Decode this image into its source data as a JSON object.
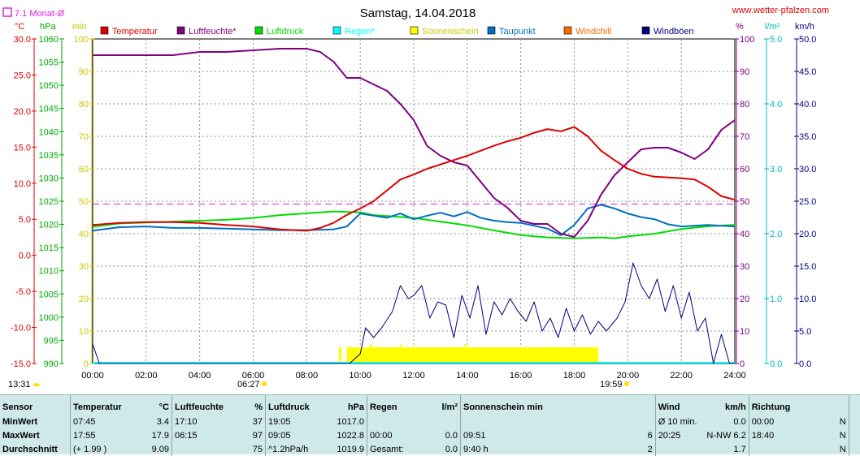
{
  "chart_data": {
    "type": "line",
    "title": "Samstag, 14.04.2018",
    "source": "www.wetter-pfalzen.com",
    "monthly_avg_label": "7.1 Monat-Ø",
    "x_ticks": [
      "00:00",
      "02:00",
      "04:00",
      "06:00",
      "08:00",
      "10:00",
      "12:00",
      "14:00",
      "16:00",
      "18:00",
      "20:00",
      "22:00",
      "24:00"
    ],
    "sunrise": "06:27",
    "sunset": "19:59",
    "daylength": "13:31",
    "axes": {
      "temp": {
        "unit": "°C",
        "ylim": [
          -15,
          30
        ],
        "ticks": [
          "30.0",
          "25.0",
          "20.0",
          "15.0",
          "10.0",
          "5.0",
          "0.0",
          "-5.0",
          "-10.0",
          "-15.0"
        ]
      },
      "pres": {
        "unit": "hPa",
        "ylim": [
          990,
          1060
        ],
        "ticks": [
          "1060",
          "1055",
          "1050",
          "1045",
          "1040",
          "1035",
          "1030",
          "1025",
          "1020",
          "1015",
          "1010",
          "1005",
          "1000",
          "995",
          "990"
        ]
      },
      "sun": {
        "unit": "min",
        "ylim": [
          0,
          100
        ],
        "ticks": [
          "100",
          "90",
          "80",
          "70",
          "60",
          "50",
          "40",
          "30",
          "20",
          "10",
          "0"
        ]
      },
      "hum": {
        "unit": "%",
        "ylim": [
          0,
          100
        ],
        "ticks": [
          "100",
          "90",
          "80",
          "70",
          "60",
          "50",
          "40",
          "30",
          "20",
          "10",
          "0"
        ]
      },
      "rain": {
        "unit": "l/m²",
        "ylim": [
          0,
          5
        ],
        "ticks": [
          "5.0",
          "4.0",
          "3.0",
          "2.0",
          "1.0",
          "0.0"
        ]
      },
      "wind": {
        "unit": "km/h",
        "ylim": [
          0,
          50
        ],
        "ticks": [
          "50.0",
          "45.0",
          "40.0",
          "35.0",
          "30.0",
          "25.0",
          "20.0",
          "15.0",
          "10.0",
          "5.0",
          "0.0"
        ]
      }
    },
    "monthly_avg_value": 7.1,
    "legend": [
      {
        "name": "Temperatur",
        "color": "#dd0000"
      },
      {
        "name": "Luftfeuchte*",
        "color": "#800080"
      },
      {
        "name": "Luftdruck",
        "color": "#00dd00"
      },
      {
        "name": "Regen*",
        "color": "#00ffff"
      },
      {
        "name": "Sonnenschein",
        "color": "#ffff00"
      },
      {
        "name": "Taupunkt",
        "color": "#0070c0"
      },
      {
        "name": "Windchill",
        "color": "#ff6600"
      },
      {
        "name": "Windböen",
        "color": "#000080"
      }
    ],
    "series": [
      {
        "name": "Temperatur",
        "axis": "temp",
        "color": "#dd0000",
        "points": [
          [
            0,
            4.2
          ],
          [
            1,
            4.5
          ],
          [
            2,
            4.6
          ],
          [
            3,
            4.6
          ],
          [
            4,
            4.5
          ],
          [
            5,
            4.2
          ],
          [
            6,
            4.0
          ],
          [
            7,
            3.6
          ],
          [
            8,
            3.4
          ],
          [
            8.5,
            3.8
          ],
          [
            9,
            4.5
          ],
          [
            9.5,
            5.6
          ],
          [
            10,
            6.5
          ],
          [
            10.5,
            7.5
          ],
          [
            11,
            9.0
          ],
          [
            11.5,
            10.5
          ],
          [
            12,
            11.2
          ],
          [
            12.5,
            12.0
          ],
          [
            13,
            12.6
          ],
          [
            13.5,
            13.2
          ],
          [
            14,
            13.8
          ],
          [
            14.5,
            14.5
          ],
          [
            15,
            15.2
          ],
          [
            15.5,
            15.8
          ],
          [
            16,
            16.3
          ],
          [
            16.5,
            17.0
          ],
          [
            17,
            17.5
          ],
          [
            17.5,
            17.2
          ],
          [
            18,
            17.8
          ],
          [
            18.5,
            16.5
          ],
          [
            19,
            14.5
          ],
          [
            19.5,
            13.2
          ],
          [
            20,
            12.0
          ],
          [
            20.5,
            11.3
          ],
          [
            21,
            10.9
          ],
          [
            22,
            10.7
          ],
          [
            22.5,
            10.5
          ],
          [
            23,
            9.5
          ],
          [
            23.5,
            8.2
          ],
          [
            24,
            7.7
          ]
        ]
      },
      {
        "name": "Luftfeuchte*",
        "axis": "hum",
        "color": "#800080",
        "points": [
          [
            0,
            95
          ],
          [
            1,
            95
          ],
          [
            2,
            95
          ],
          [
            3,
            95
          ],
          [
            3.5,
            95.5
          ],
          [
            4,
            96
          ],
          [
            5,
            96
          ],
          [
            6,
            96.5
          ],
          [
            7,
            97
          ],
          [
            8,
            97
          ],
          [
            8.5,
            96
          ],
          [
            9,
            93
          ],
          [
            9.5,
            88
          ],
          [
            10,
            88
          ],
          [
            10.5,
            86
          ],
          [
            11,
            84
          ],
          [
            11.5,
            80
          ],
          [
            12,
            75
          ],
          [
            12.5,
            67
          ],
          [
            13,
            64
          ],
          [
            13.5,
            62
          ],
          [
            14,
            61
          ],
          [
            14.5,
            56
          ],
          [
            15,
            51
          ],
          [
            15.5,
            48
          ],
          [
            16,
            44
          ],
          [
            16.5,
            43
          ],
          [
            17,
            43
          ],
          [
            17.5,
            40
          ],
          [
            18,
            39
          ],
          [
            18.5,
            44
          ],
          [
            19,
            52
          ],
          [
            19.5,
            58
          ],
          [
            20,
            62
          ],
          [
            20.5,
            66
          ],
          [
            21,
            66.5
          ],
          [
            21.5,
            66.5
          ],
          [
            22,
            65
          ],
          [
            22.5,
            63
          ],
          [
            23,
            66
          ],
          [
            23.5,
            72
          ],
          [
            24,
            75
          ]
        ]
      },
      {
        "name": "Luftdruck",
        "axis": "pres",
        "color": "#00dd00",
        "points": [
          [
            0,
            1019.5
          ],
          [
            1,
            1020.2
          ],
          [
            2,
            1020.4
          ],
          [
            3,
            1020.6
          ],
          [
            4,
            1020.8
          ],
          [
            5,
            1021.0
          ],
          [
            6,
            1021.4
          ],
          [
            7,
            1022.0
          ],
          [
            8,
            1022.4
          ],
          [
            9,
            1022.8
          ],
          [
            10,
            1022.6
          ],
          [
            10.5,
            1022.0
          ],
          [
            11,
            1021.8
          ],
          [
            12,
            1021.4
          ],
          [
            13,
            1020.6
          ],
          [
            14,
            1019.8
          ],
          [
            15,
            1018.7
          ],
          [
            16,
            1017.7
          ],
          [
            17,
            1017.2
          ],
          [
            18,
            1017.0
          ],
          [
            19,
            1017.2
          ],
          [
            19.5,
            1017.0
          ],
          [
            20,
            1017.4
          ],
          [
            21,
            1018.0
          ],
          [
            22,
            1019.0
          ],
          [
            23,
            1019.6
          ],
          [
            24,
            1019.9
          ]
        ]
      },
      {
        "name": "Taupunkt",
        "axis": "temp",
        "color": "#0070c0",
        "points": [
          [
            0,
            3.4
          ],
          [
            1,
            3.9
          ],
          [
            2,
            4.0
          ],
          [
            3,
            3.8
          ],
          [
            4,
            3.8
          ],
          [
            5,
            3.7
          ],
          [
            6,
            3.6
          ],
          [
            7,
            3.5
          ],
          [
            8,
            3.5
          ],
          [
            9,
            3.6
          ],
          [
            9.5,
            4.0
          ],
          [
            10,
            5.8
          ],
          [
            10.5,
            5.5
          ],
          [
            11,
            5.2
          ],
          [
            11.5,
            5.8
          ],
          [
            12,
            5.0
          ],
          [
            12.5,
            5.5
          ],
          [
            13,
            5.9
          ],
          [
            13.5,
            5.4
          ],
          [
            14,
            6.0
          ],
          [
            14.5,
            5.2
          ],
          [
            15,
            4.8
          ],
          [
            15.5,
            4.6
          ],
          [
            16,
            4.5
          ],
          [
            16.5,
            4.1
          ],
          [
            17,
            3.7
          ],
          [
            17.5,
            2.8
          ],
          [
            18,
            4.2
          ],
          [
            18.5,
            6.5
          ],
          [
            19,
            7.0
          ],
          [
            19.5,
            6.5
          ],
          [
            20,
            5.8
          ],
          [
            20.5,
            5.3
          ],
          [
            21,
            5.0
          ],
          [
            21.5,
            4.3
          ],
          [
            22,
            4.0
          ],
          [
            23,
            4.2
          ],
          [
            24,
            4.0
          ]
        ]
      },
      {
        "name": "Windböen",
        "axis": "wind",
        "color": "#000080",
        "points": [
          [
            0,
            3.0
          ],
          [
            0.25,
            0.0
          ],
          [
            9.6,
            0.0
          ],
          [
            10.0,
            1.5
          ],
          [
            10.2,
            5.5
          ],
          [
            10.5,
            4.0
          ],
          [
            10.8,
            5.5
          ],
          [
            11.2,
            8.0
          ],
          [
            11.5,
            12.0
          ],
          [
            11.8,
            10.0
          ],
          [
            12,
            10.5
          ],
          [
            12.3,
            12.0
          ],
          [
            12.6,
            7.0
          ],
          [
            12.9,
            9.5
          ],
          [
            13.2,
            9.0
          ],
          [
            13.5,
            4.0
          ],
          [
            13.8,
            10.5
          ],
          [
            14.1,
            7.0
          ],
          [
            14.4,
            12.0
          ],
          [
            14.7,
            4.5
          ],
          [
            15.0,
            9.5
          ],
          [
            15.3,
            7.5
          ],
          [
            15.6,
            10.0
          ],
          [
            15.9,
            8.0
          ],
          [
            16.2,
            6.5
          ],
          [
            16.5,
            9.5
          ],
          [
            16.8,
            5.0
          ],
          [
            17.1,
            7.0
          ],
          [
            17.4,
            4.0
          ],
          [
            17.7,
            8.5
          ],
          [
            18.0,
            5.0
          ],
          [
            18.3,
            7.5
          ],
          [
            18.6,
            4.5
          ],
          [
            18.9,
            6.5
          ],
          [
            19.2,
            5.0
          ],
          [
            19.6,
            7.0
          ],
          [
            19.9,
            9.5
          ],
          [
            20.2,
            15.5
          ],
          [
            20.5,
            12.0
          ],
          [
            20.8,
            10.0
          ],
          [
            21.1,
            13.0
          ],
          [
            21.4,
            8.0
          ],
          [
            21.7,
            12.0
          ],
          [
            22.0,
            7.0
          ],
          [
            22.3,
            11.0
          ],
          [
            22.6,
            5.0
          ],
          [
            22.9,
            7.0
          ],
          [
            23.2,
            0.0
          ],
          [
            23.5,
            4.5
          ],
          [
            23.8,
            0.0
          ],
          [
            24,
            0.0
          ]
        ]
      }
    ],
    "sunshine_bars": [
      {
        "from": 9.2,
        "to": 9.3,
        "height": 5
      },
      {
        "from": 9.5,
        "to": 18.9,
        "height": 5
      }
    ],
    "sunshine_extra_bars": [
      {
        "at": 10.4,
        "height": 6
      },
      {
        "at": 10.9,
        "height": 5
      },
      {
        "at": 11.5,
        "height": 6
      },
      {
        "at": 11.8,
        "height": 5
      },
      {
        "at": 12.6,
        "height": 5
      },
      {
        "at": 13.9,
        "height": 6
      }
    ],
    "rain_total": 0.0
  },
  "stats": {
    "header": {
      "sensor": "Sensor",
      "temperatur": "Temperatur",
      "temp_unit": "°C",
      "luftfeuchte": "Luftfeuchte",
      "hum_unit": "%",
      "luftdruck": "Luftdruck",
      "pres_unit": "hPa",
      "regen": "Regen",
      "rain_unit": "l/m²",
      "sonnenschein": "Sonnenschein min",
      "wind": "Wind",
      "wind_unit": "km/h",
      "richtung": "Richtung"
    },
    "rows": [
      {
        "label": "MinWert",
        "t_time": "07:45",
        "t_val": "3.4",
        "h_time": "17:10",
        "h_val": "37",
        "p_time": "19:05",
        "p_val": "1017.0",
        "r_time": "",
        "r_val": "",
        "s_time": "",
        "s_val": "",
        "w_time": "Ø 10 min.",
        "w_val": "0.0",
        "d_time": "00:00",
        "d_val": "N"
      },
      {
        "label": "MaxWert",
        "t_time": "17:55",
        "t_val": "17.9",
        "h_time": "06:15",
        "h_val": "97",
        "p_time": "09:05",
        "p_val": "1022.8",
        "r_time": "00:00",
        "r_val": "0.0",
        "s_time": "09:51",
        "s_val": "6",
        "w_time": "20:25",
        "w_val": "N-NW 6.2",
        "d_time": "18:40",
        "d_val": "N"
      },
      {
        "label": "Durchschnitt",
        "t_time": "(+ 1.99 )",
        "t_val": "9.09",
        "h_time": "",
        "h_val": "75",
        "p_time": "^1.2hPa/h",
        "p_val": "1019.9",
        "r_time": "Gesamt:",
        "r_val": "0.0",
        "s_time": "9:40 h",
        "s_val": "2",
        "w_time": "",
        "w_val": "1.7",
        "d_time": "",
        "d_val": "N"
      }
    ]
  }
}
